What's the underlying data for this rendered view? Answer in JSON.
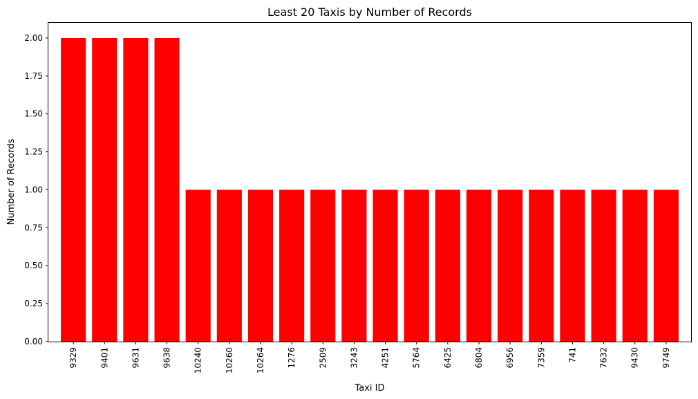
{
  "chart_data": {
    "type": "bar",
    "title": "Least 20 Taxis by Number of Records",
    "xlabel": "Taxi ID",
    "ylabel": "Number of Records",
    "categories": [
      "9329",
      "9401",
      "9631",
      "9638",
      "10240",
      "10260",
      "10264",
      "1276",
      "2509",
      "3243",
      "4251",
      "5764",
      "6425",
      "6804",
      "6956",
      "7359",
      "741",
      "7632",
      "9430",
      "9749"
    ],
    "values": [
      2,
      2,
      2,
      2,
      1,
      1,
      1,
      1,
      1,
      1,
      1,
      1,
      1,
      1,
      1,
      1,
      1,
      1,
      1,
      1
    ],
    "ylim": [
      0,
      2.1
    ],
    "yticks": [
      "0.00",
      "0.25",
      "0.50",
      "0.75",
      "1.00",
      "1.25",
      "1.50",
      "1.75",
      "2.00"
    ],
    "bar_color": "#ff0000",
    "grid": false,
    "legend": "none"
  }
}
